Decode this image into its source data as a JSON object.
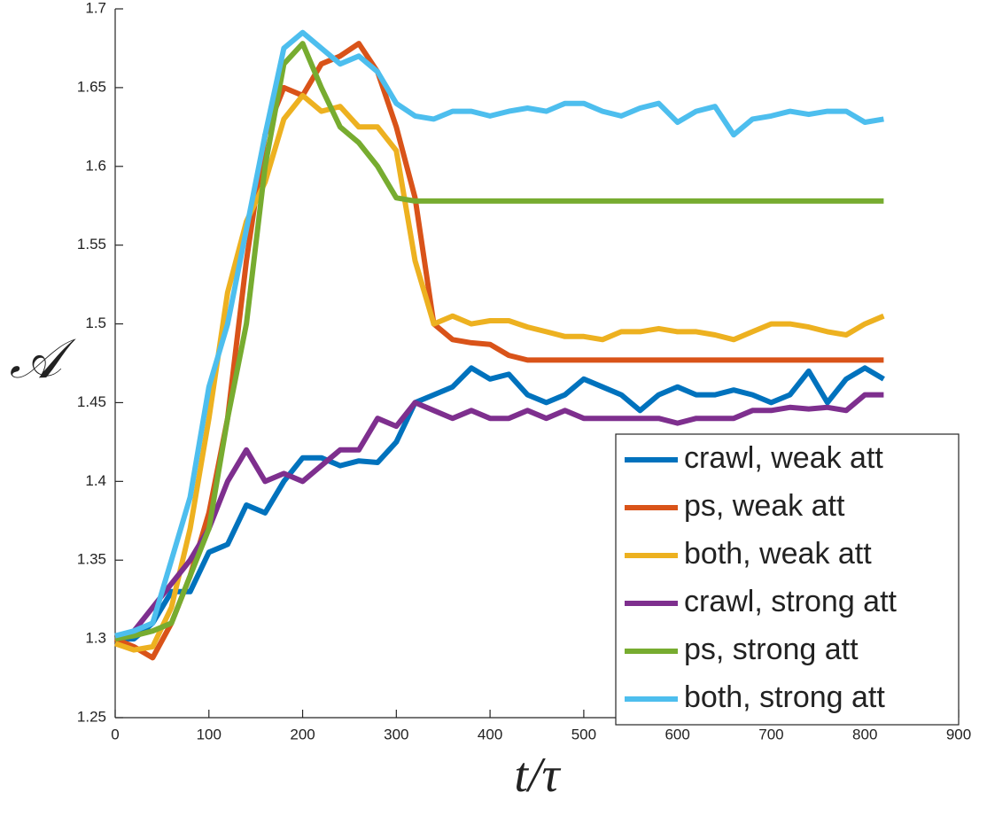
{
  "chart_data": {
    "type": "line",
    "xlabel": "t/τ",
    "ylabel": "𝒜",
    "x": [
      0,
      20,
      40,
      60,
      80,
      100,
      120,
      140,
      160,
      180,
      200,
      220,
      240,
      260,
      280,
      300,
      320,
      340,
      360,
      380,
      400,
      420,
      440,
      460,
      480,
      500,
      520,
      540,
      560,
      580,
      600,
      620,
      640,
      660,
      680,
      700,
      720,
      740,
      760,
      780,
      800,
      820
    ],
    "series": [
      {
        "name": "crawl, weak att",
        "color": "#0072BD",
        "values": [
          1.3,
          1.3,
          1.31,
          1.33,
          1.33,
          1.355,
          1.36,
          1.385,
          1.38,
          1.4,
          1.415,
          1.415,
          1.41,
          1.413,
          1.412,
          1.425,
          1.45,
          1.455,
          1.46,
          1.472,
          1.465,
          1.468,
          1.455,
          1.45,
          1.455,
          1.465,
          1.46,
          1.455,
          1.445,
          1.455,
          1.46,
          1.455,
          1.455,
          1.458,
          1.455,
          1.45,
          1.455,
          1.47,
          1.45,
          1.465,
          1.472,
          1.465
        ]
      },
      {
        "name": "ps, weak att",
        "color": "#D95319",
        "values": [
          1.3,
          1.295,
          1.288,
          1.31,
          1.34,
          1.38,
          1.44,
          1.54,
          1.62,
          1.65,
          1.645,
          1.665,
          1.67,
          1.678,
          1.66,
          1.625,
          1.58,
          1.5,
          1.49,
          1.488,
          1.487,
          1.48,
          1.477,
          1.477,
          1.477,
          1.477,
          1.477,
          1.477,
          1.477,
          1.477,
          1.477,
          1.477,
          1.477,
          1.477,
          1.477,
          1.477,
          1.477,
          1.477,
          1.477,
          1.477,
          1.477,
          1.477
        ]
      },
      {
        "name": "both, weak att",
        "color": "#EDB120",
        "values": [
          1.297,
          1.293,
          1.295,
          1.32,
          1.37,
          1.44,
          1.52,
          1.565,
          1.59,
          1.63,
          1.645,
          1.635,
          1.638,
          1.625,
          1.625,
          1.61,
          1.54,
          1.5,
          1.505,
          1.5,
          1.502,
          1.502,
          1.498,
          1.495,
          1.492,
          1.492,
          1.49,
          1.495,
          1.495,
          1.497,
          1.495,
          1.495,
          1.493,
          1.49,
          1.495,
          1.5,
          1.5,
          1.498,
          1.495,
          1.493,
          1.5,
          1.505
        ]
      },
      {
        "name": "crawl, strong att",
        "color": "#7E2F8E",
        "values": [
          1.3,
          1.305,
          1.32,
          1.335,
          1.35,
          1.37,
          1.4,
          1.42,
          1.4,
          1.405,
          1.4,
          1.41,
          1.42,
          1.42,
          1.44,
          1.435,
          1.45,
          1.445,
          1.44,
          1.445,
          1.44,
          1.44,
          1.445,
          1.44,
          1.445,
          1.44,
          1.44,
          1.44,
          1.44,
          1.44,
          1.437,
          1.44,
          1.44,
          1.44,
          1.445,
          1.445,
          1.447,
          1.446,
          1.447,
          1.445,
          1.455,
          1.455
        ]
      },
      {
        "name": "ps, strong att",
        "color": "#77AC30",
        "values": [
          1.3,
          1.302,
          1.305,
          1.31,
          1.34,
          1.37,
          1.44,
          1.5,
          1.6,
          1.665,
          1.678,
          1.65,
          1.625,
          1.615,
          1.6,
          1.58,
          1.578,
          1.578,
          1.578,
          1.578,
          1.578,
          1.578,
          1.578,
          1.578,
          1.578,
          1.578,
          1.578,
          1.578,
          1.578,
          1.578,
          1.578,
          1.578,
          1.578,
          1.578,
          1.578,
          1.578,
          1.578,
          1.578,
          1.578,
          1.578,
          1.578,
          1.578
        ]
      },
      {
        "name": "both, strong att",
        "color": "#4DBEEE",
        "values": [
          1.302,
          1.305,
          1.31,
          1.35,
          1.39,
          1.46,
          1.5,
          1.56,
          1.62,
          1.675,
          1.685,
          1.675,
          1.665,
          1.67,
          1.66,
          1.64,
          1.632,
          1.63,
          1.635,
          1.635,
          1.632,
          1.635,
          1.637,
          1.635,
          1.64,
          1.64,
          1.635,
          1.632,
          1.637,
          1.64,
          1.628,
          1.635,
          1.638,
          1.62,
          1.63,
          1.632,
          1.635,
          1.633,
          1.635,
          1.635,
          1.628,
          1.63
        ]
      }
    ],
    "xlim": [
      0,
      900
    ],
    "xticks": [
      0,
      100,
      200,
      300,
      400,
      500,
      600,
      700,
      800,
      900
    ],
    "ylim": [
      1.25,
      1.7
    ],
    "yticks": [
      1.25,
      1.3,
      1.35,
      1.4,
      1.45,
      1.5,
      1.55,
      1.6,
      1.65,
      1.7
    ],
    "legend": "lower-right"
  }
}
